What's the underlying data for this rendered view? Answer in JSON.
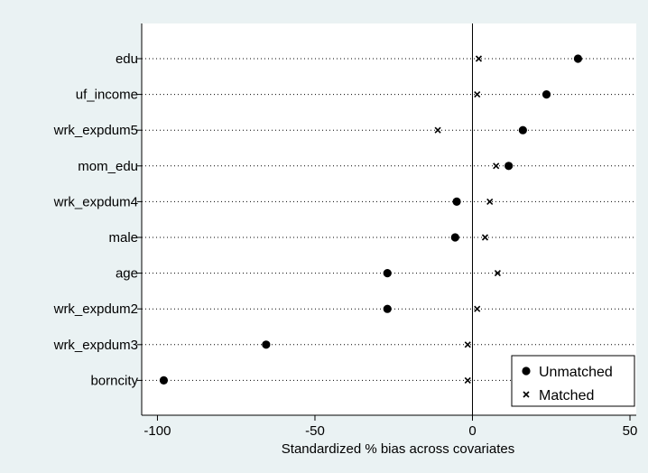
{
  "chart_data": {
    "type": "scatter",
    "title": "",
    "xlabel": "Standardized % bias across covariates",
    "ylabel": "",
    "xlim": [
      -105,
      52
    ],
    "xticks": [
      -100,
      -50,
      0,
      50
    ],
    "reference_line_x": 0,
    "grid": "dotted horizontal lines per category",
    "legend_position": "bottom-right",
    "categories": [
      "edu",
      "uf_income",
      "wrk_expdum5",
      "mom_edu",
      "wrk_expdum4",
      "male",
      "age",
      "wrk_expdum2",
      "wrk_expdum3",
      "borncity"
    ],
    "series": [
      {
        "name": "Unmatched",
        "marker": "filled-circle",
        "values": [
          33.5,
          23.5,
          16,
          11.5,
          -5,
          -5.5,
          -27,
          -27,
          -65.5,
          -98
        ]
      },
      {
        "name": "Matched",
        "marker": "x",
        "values": [
          2,
          1.5,
          -11,
          7.5,
          5.5,
          4,
          8,
          1.5,
          -1.5,
          -1.5
        ]
      }
    ],
    "colors": {
      "page_background": "#eaf2f3",
      "plot_background": "#ffffff",
      "markers": "#000000"
    }
  }
}
